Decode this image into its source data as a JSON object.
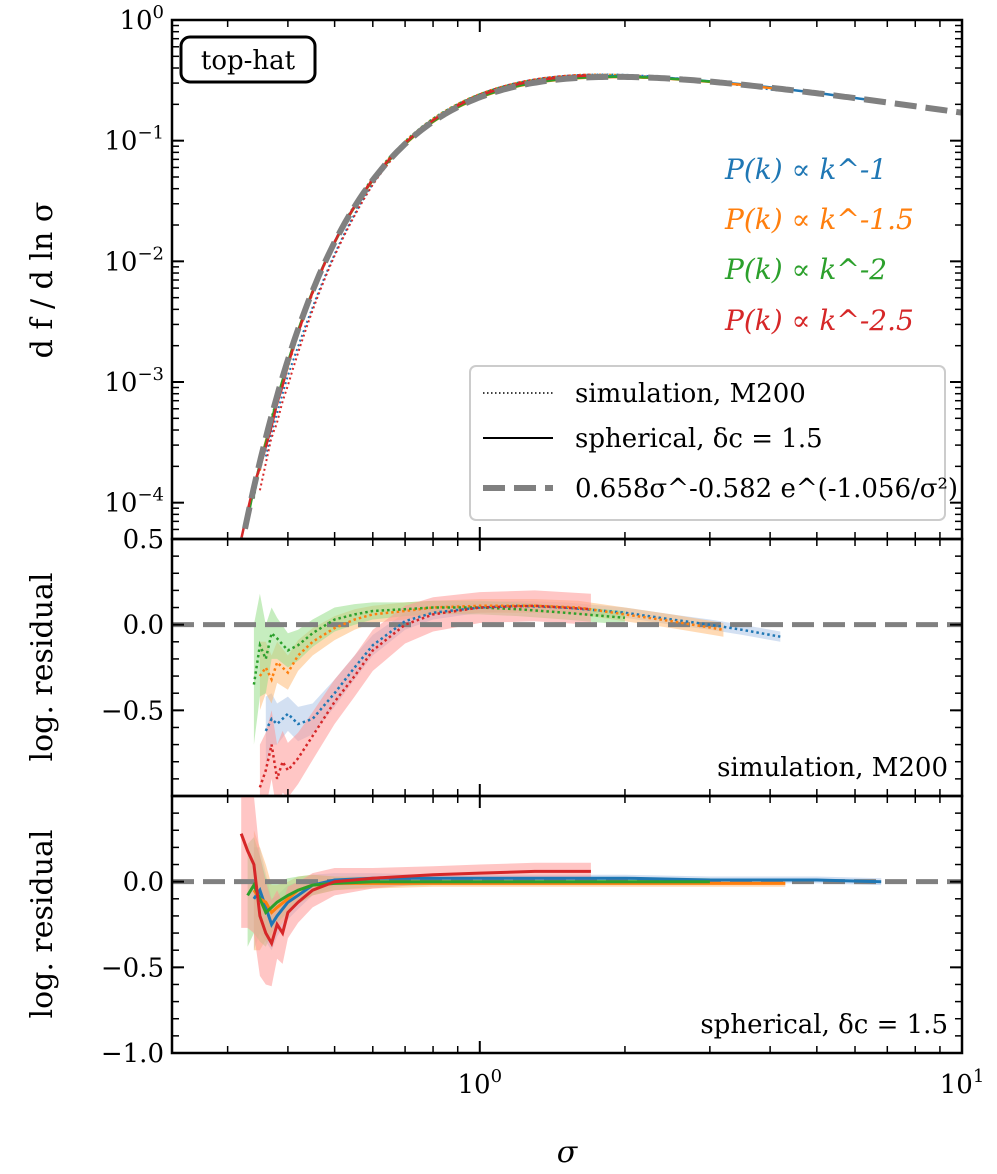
{
  "chart_data": [
    {
      "type": "line",
      "panel": "top",
      "xscale": "log",
      "yscale": "log",
      "xlim": [
        0.23,
        10
      ],
      "ylim": [
        5e-05,
        1
      ],
      "ylabel": "d f / d ln σ",
      "box_label": "top-hat",
      "y_ticks": [
        {
          "v": 1,
          "label": "10^0"
        },
        {
          "v": 0.1,
          "label": "10^-1"
        },
        {
          "v": 0.01,
          "label": "10^-2"
        },
        {
          "v": 0.001,
          "label": "10^-3"
        },
        {
          "v": 0.0001,
          "label": "10^-4"
        }
      ],
      "series_labels": [
        {
          "name": "P(k) ∝ k^-1",
          "color": "#1f77b4"
        },
        {
          "name": "P(k) ∝ k^-1.5",
          "color": "#ff7f0e"
        },
        {
          "name": "P(k) ∝ k^-2",
          "color": "#2ca02c"
        },
        {
          "name": "P(k) ∝ k^-2.5",
          "color": "#d62728"
        }
      ],
      "legend": [
        {
          "style": "dotted",
          "label": "simulation, M200"
        },
        {
          "style": "solid",
          "label": "spherical, δc = 1.5"
        },
        {
          "style": "dashed",
          "label": "0.658σ^-0.582 e^(-1.056/σ²)"
        }
      ],
      "fit": {
        "A": 0.658,
        "alpha": 0.582,
        "beta": 1.056,
        "color": "#808080"
      }
    },
    {
      "type": "line",
      "panel": "middle",
      "xscale": "log",
      "ylim": [
        -1.0,
        0.5
      ],
      "ylabel": "log. residual",
      "annotation": "simulation, M200",
      "y_ticks": [
        {
          "v": 0.5,
          "label": "0.5"
        },
        {
          "v": 0.0,
          "label": "0.0"
        },
        {
          "v": -0.5,
          "label": "−0.5"
        }
      ],
      "series": [
        {
          "name": "k^-1",
          "color": "#1f77b4",
          "band_color": "#aec7e8",
          "x": [
            0.36,
            0.37,
            0.38,
            0.4,
            0.42,
            0.45,
            0.5,
            0.55,
            0.6,
            0.7,
            0.8,
            1.0,
            1.2,
            1.5,
            2.0,
            2.5,
            3.0,
            3.5,
            4.2
          ],
          "y": [
            -0.62,
            -0.55,
            -0.58,
            -0.52,
            -0.58,
            -0.55,
            -0.4,
            -0.25,
            -0.12,
            0.02,
            0.07,
            0.1,
            0.11,
            0.1,
            0.07,
            0.03,
            0.0,
            -0.03,
            -0.07
          ],
          "err": [
            0.2,
            0.15,
            0.12,
            0.1,
            0.1,
            0.09,
            0.08,
            0.07,
            0.06,
            0.05,
            0.04,
            0.03,
            0.03,
            0.03,
            0.03,
            0.03,
            0.03,
            0.03,
            0.03
          ]
        },
        {
          "name": "k^-1.5",
          "color": "#ff7f0e",
          "band_color": "#ffbb78",
          "x": [
            0.35,
            0.36,
            0.37,
            0.38,
            0.4,
            0.42,
            0.45,
            0.5,
            0.55,
            0.6,
            0.7,
            0.8,
            1.0,
            1.3,
            1.6,
            2.0,
            2.5,
            3.2
          ],
          "y": [
            -0.3,
            -0.25,
            -0.32,
            -0.22,
            -0.28,
            -0.18,
            -0.1,
            -0.02,
            0.03,
            0.06,
            0.08,
            0.1,
            0.11,
            0.11,
            0.1,
            0.06,
            0.02,
            -0.03
          ],
          "err": [
            0.2,
            0.15,
            0.14,
            0.12,
            0.1,
            0.09,
            0.08,
            0.07,
            0.06,
            0.05,
            0.05,
            0.04,
            0.04,
            0.04,
            0.04,
            0.04,
            0.04,
            0.04
          ]
        },
        {
          "name": "k^-2",
          "color": "#2ca02c",
          "band_color": "#98df8a",
          "x": [
            0.34,
            0.35,
            0.36,
            0.37,
            0.38,
            0.4,
            0.42,
            0.45,
            0.5,
            0.55,
            0.6,
            0.7,
            0.8,
            1.0,
            1.2,
            1.5,
            2.0
          ],
          "y": [
            -0.35,
            -0.12,
            -0.2,
            -0.05,
            -0.08,
            -0.15,
            -0.12,
            -0.05,
            0.03,
            0.06,
            0.08,
            0.09,
            0.1,
            0.1,
            0.09,
            0.07,
            0.04
          ],
          "err": [
            0.35,
            0.3,
            0.2,
            0.15,
            0.12,
            0.1,
            0.09,
            0.08,
            0.07,
            0.06,
            0.05,
            0.04,
            0.04,
            0.04,
            0.04,
            0.04,
            0.04
          ]
        },
        {
          "name": "k^-2.5",
          "color": "#d62728",
          "band_color": "#ff9896",
          "x": [
            0.35,
            0.36,
            0.37,
            0.38,
            0.39,
            0.4,
            0.42,
            0.45,
            0.5,
            0.55,
            0.6,
            0.7,
            0.8,
            1.0,
            1.3,
            1.7
          ],
          "y": [
            -0.95,
            -0.85,
            -0.7,
            -0.9,
            -0.8,
            -0.85,
            -0.78,
            -0.65,
            -0.45,
            -0.3,
            -0.15,
            0.0,
            0.06,
            0.1,
            0.11,
            0.09
          ],
          "err": [
            0.25,
            0.22,
            0.2,
            0.2,
            0.18,
            0.16,
            0.15,
            0.14,
            0.13,
            0.12,
            0.12,
            0.11,
            0.1,
            0.09,
            0.09,
            0.09
          ]
        }
      ]
    },
    {
      "type": "line",
      "panel": "bottom",
      "xscale": "log",
      "xlim": [
        0.23,
        10
      ],
      "ylim": [
        -1.0,
        0.5
      ],
      "xlabel": "σ",
      "ylabel": "log. residual",
      "annotation": "spherical, δc = 1.5",
      "y_ticks": [
        {
          "v": 0.0,
          "label": "0.0"
        },
        {
          "v": -0.5,
          "label": "−0.5"
        },
        {
          "v": -1.0,
          "label": "−1.0"
        }
      ],
      "x_ticks": [
        {
          "v": 1,
          "label": "10^0"
        },
        {
          "v": 10,
          "label": "10^1"
        }
      ],
      "series": [
        {
          "name": "k^-1",
          "color": "#1f77b4",
          "band_color": "#aec7e8",
          "x": [
            0.34,
            0.35,
            0.36,
            0.37,
            0.38,
            0.4,
            0.42,
            0.45,
            0.5,
            0.6,
            0.8,
            1.0,
            1.5,
            2.0,
            3.0,
            4.0,
            5.0,
            6.8
          ],
          "y": [
            -0.1,
            -0.05,
            -0.15,
            -0.25,
            -0.2,
            -0.12,
            -0.08,
            -0.02,
            0.01,
            0.02,
            0.02,
            0.02,
            0.02,
            0.02,
            0.01,
            0.01,
            0.01,
            0.0
          ],
          "err": [
            0.3,
            0.25,
            0.2,
            0.15,
            0.12,
            0.1,
            0.08,
            0.06,
            0.04,
            0.03,
            0.02,
            0.02,
            0.02,
            0.02,
            0.02,
            0.02,
            0.02,
            0.02
          ]
        },
        {
          "name": "k^-1.5",
          "color": "#ff7f0e",
          "band_color": "#ffbb78",
          "x": [
            0.34,
            0.35,
            0.36,
            0.37,
            0.38,
            0.4,
            0.42,
            0.45,
            0.5,
            0.6,
            0.8,
            1.0,
            1.5,
            2.0,
            3.0,
            4.3
          ],
          "y": [
            -0.05,
            -0.1,
            -0.12,
            -0.18,
            -0.15,
            -0.1,
            -0.05,
            -0.02,
            -0.01,
            -0.01,
            -0.01,
            -0.01,
            -0.01,
            -0.01,
            -0.01,
            -0.01
          ],
          "err": [
            0.35,
            0.3,
            0.22,
            0.16,
            0.13,
            0.1,
            0.08,
            0.06,
            0.04,
            0.03,
            0.02,
            0.02,
            0.02,
            0.02,
            0.02,
            0.02
          ]
        },
        {
          "name": "k^-2",
          "color": "#2ca02c",
          "band_color": "#98df8a",
          "x": [
            0.33,
            0.34,
            0.35,
            0.36,
            0.37,
            0.38,
            0.4,
            0.42,
            0.45,
            0.5,
            0.6,
            0.8,
            1.0,
            1.5,
            2.0,
            3.0
          ],
          "y": [
            -0.08,
            -0.02,
            -0.1,
            -0.18,
            -0.15,
            -0.12,
            -0.08,
            -0.05,
            -0.02,
            -0.01,
            0.0,
            0.0,
            0.0,
            0.0,
            0.0,
            0.0
          ],
          "err": [
            0.3,
            0.28,
            0.25,
            0.2,
            0.15,
            0.12,
            0.1,
            0.08,
            0.06,
            0.04,
            0.03,
            0.02,
            0.02,
            0.02,
            0.02,
            0.02
          ]
        },
        {
          "name": "k^-2.5",
          "color": "#d62728",
          "band_color": "#ff9896",
          "x": [
            0.32,
            0.33,
            0.34,
            0.35,
            0.36,
            0.37,
            0.38,
            0.39,
            0.4,
            0.42,
            0.45,
            0.5,
            0.6,
            0.8,
            1.0,
            1.3,
            1.7
          ],
          "y": [
            0.28,
            0.18,
            0.1,
            -0.2,
            -0.3,
            -0.36,
            -0.25,
            -0.3,
            -0.18,
            -0.12,
            -0.05,
            0.0,
            0.02,
            0.04,
            0.05,
            0.06,
            0.06
          ],
          "err": [
            0.55,
            0.45,
            0.4,
            0.35,
            0.3,
            0.25,
            0.2,
            0.18,
            0.15,
            0.12,
            0.1,
            0.08,
            0.06,
            0.05,
            0.05,
            0.05,
            0.05
          ]
        }
      ]
    }
  ]
}
